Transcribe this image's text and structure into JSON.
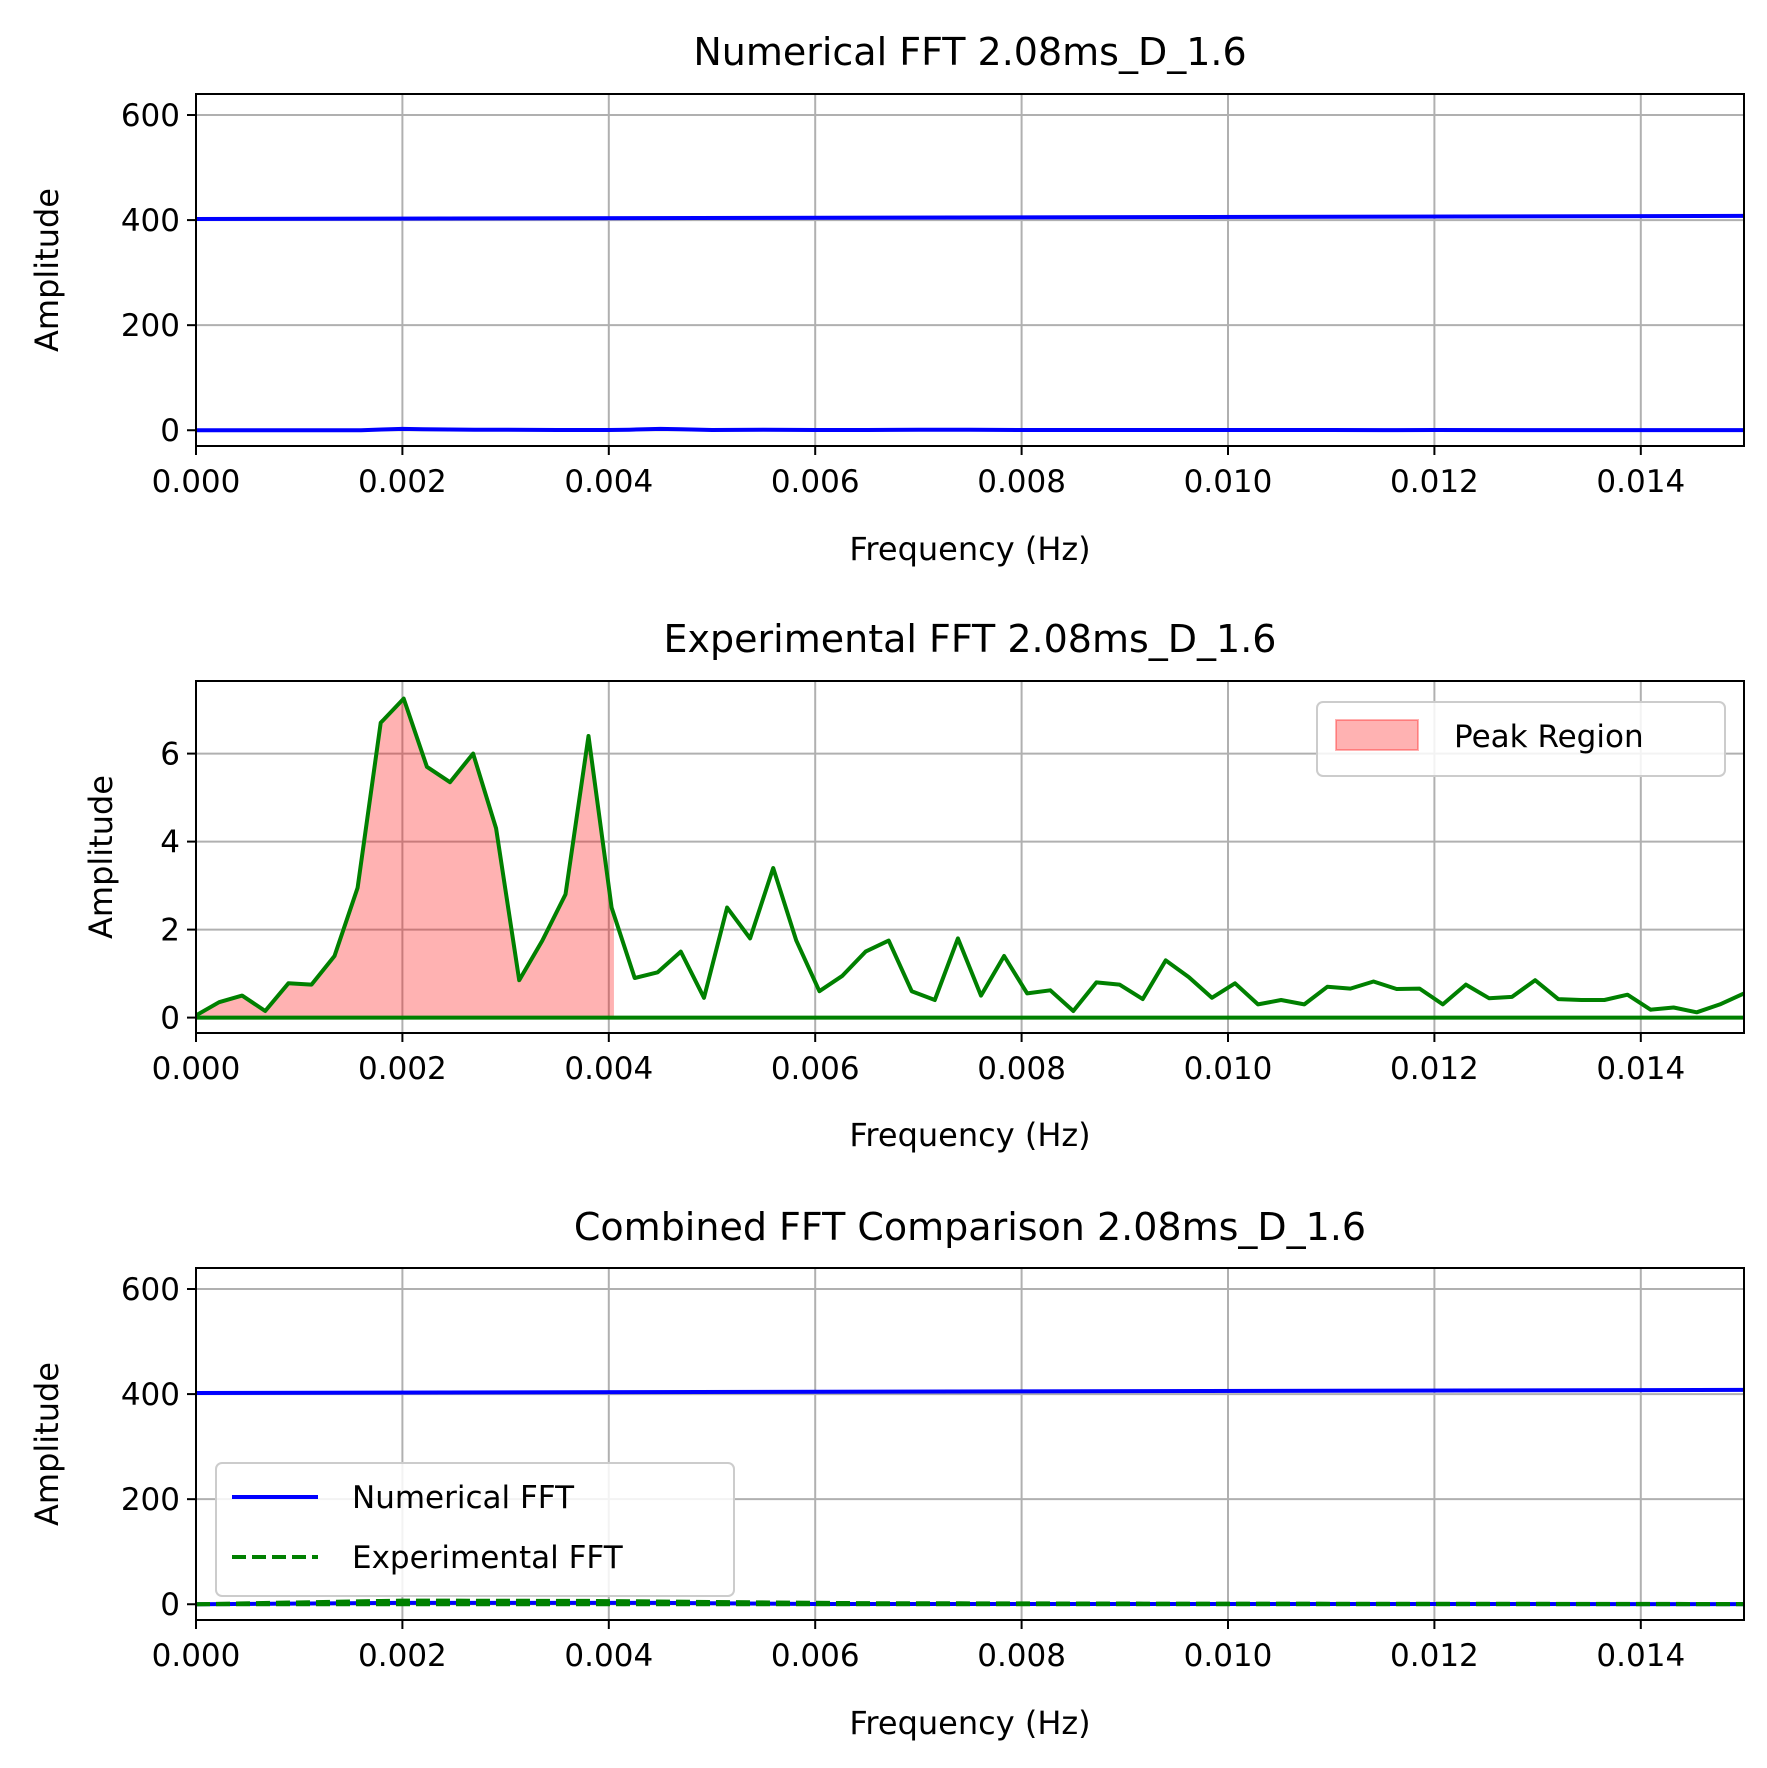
{
  "chart_data": [
    {
      "type": "line",
      "title": "Numerical FFT 2.08ms_D_1.6",
      "xlabel": "Frequency (Hz)",
      "ylabel": "Amplitude",
      "xlim": [
        0,
        0.015
      ],
      "ylim": [
        -30,
        640
      ],
      "xticks": [
        0.0,
        0.002,
        0.004,
        0.006,
        0.008,
        0.01,
        0.012,
        0.014
      ],
      "xtick_labels": [
        "0.000",
        "0.002",
        "0.004",
        "0.006",
        "0.008",
        "0.010",
        "0.012",
        "0.014"
      ],
      "yticks": [
        0,
        200,
        400,
        600
      ],
      "ytick_labels": [
        "0",
        "200",
        "400",
        "600"
      ],
      "grid": true,
      "series": [
        {
          "color": "#0000ff",
          "style": "solid",
          "x": [
            0,
            0.001,
            0.0016,
            0.0018,
            0.002,
            0.0022,
            0.0027,
            0.003,
            0.0035,
            0.004,
            0.0042,
            0.0045,
            0.0047,
            0.005,
            0.0055,
            0.006,
            0.0065,
            0.007,
            0.0075,
            0.008,
            0.0085,
            0.009,
            0.0095,
            0.01,
            0.011,
            0.0115,
            0.012,
            0.013,
            0.014,
            0.015
          ],
          "y": [
            0,
            0,
            0,
            1.5,
            2.5,
            2,
            1,
            1,
            0.5,
            0.5,
            1,
            2.5,
            2,
            0.5,
            1,
            0.5,
            0.5,
            1,
            1,
            0.5,
            0.5,
            0.5,
            0.5,
            0.5,
            0.5,
            0.3,
            0.5,
            0.3,
            0.2,
            0.2
          ]
        },
        {
          "color": "#0000ff",
          "style": "solid",
          "x": [
            0,
            0.015
          ],
          "y": [
            402,
            408
          ]
        }
      ]
    },
    {
      "type": "area",
      "title": "Experimental FFT 2.08ms_D_1.6",
      "xlabel": "Frequency (Hz)",
      "ylabel": "Amplitude",
      "xlim": [
        0,
        0.015
      ],
      "ylim": [
        -0.35,
        7.65
      ],
      "xticks": [
        0.0,
        0.002,
        0.004,
        0.006,
        0.008,
        0.01,
        0.012,
        0.014
      ],
      "xtick_labels": [
        "0.000",
        "0.002",
        "0.004",
        "0.006",
        "0.008",
        "0.010",
        "0.012",
        "0.014"
      ],
      "yticks": [
        0,
        2,
        4,
        6
      ],
      "ytick_labels": [
        "0",
        "2",
        "4",
        "6"
      ],
      "grid": true,
      "legend": {
        "location": "top-right",
        "entries": [
          "Peak Region"
        ]
      },
      "fill_region": {
        "label": "Peak Region",
        "color": "#ff0000",
        "alpha": 0.3,
        "x_range": [
          0,
          0.00405
        ]
      },
      "series": [
        {
          "color": "#008000",
          "style": "solid",
          "x": [
            0,
            0.000224,
            0.000447,
            0.000671,
            0.000895,
            0.001119,
            0.001342,
            0.001566,
            0.00179,
            0.002013,
            0.002237,
            0.002461,
            0.002685,
            0.002908,
            0.003132,
            0.003356,
            0.00358,
            0.003803,
            0.004027,
            0.004251,
            0.004474,
            0.004698,
            0.004922,
            0.005146,
            0.005369,
            0.005593,
            0.005817,
            0.006041,
            0.006264,
            0.006488,
            0.006712,
            0.006935,
            0.007159,
            0.007383,
            0.007607,
            0.00783,
            0.008054,
            0.008278,
            0.008501,
            0.008725,
            0.008949,
            0.009173,
            0.009396,
            0.00962,
            0.009844,
            0.010068,
            0.010291,
            0.010515,
            0.010739,
            0.010962,
            0.011186,
            0.01141,
            0.011634,
            0.011857,
            0.012081,
            0.012305,
            0.012529,
            0.012752,
            0.012976,
            0.0132,
            0.013423,
            0.013647,
            0.013871,
            0.014095,
            0.014318,
            0.014542,
            0.014766,
            0.015
          ],
          "y": [
            0.05,
            0.35,
            0.5,
            0.15,
            0.78,
            0.75,
            1.4,
            2.95,
            6.7,
            7.25,
            5.7,
            5.35,
            6.0,
            4.3,
            0.85,
            1.75,
            2.8,
            6.4,
            2.5,
            0.9,
            1.03,
            1.5,
            0.45,
            2.5,
            1.8,
            3.4,
            1.75,
            0.6,
            0.95,
            1.5,
            1.75,
            0.6,
            0.4,
            1.8,
            0.5,
            1.4,
            0.55,
            0.62,
            0.15,
            0.8,
            0.75,
            0.42,
            1.3,
            0.92,
            0.45,
            0.78,
            0.3,
            0.4,
            0.3,
            0.7,
            0.66,
            0.82,
            0.65,
            0.66,
            0.3,
            0.75,
            0.44,
            0.47,
            0.85,
            0.42,
            0.4,
            0.4,
            0.52,
            0.18,
            0.23,
            0.12,
            0.3,
            0.55
          ]
        },
        {
          "color": "#008000",
          "style": "solid",
          "x": [
            0,
            0.015
          ],
          "y": [
            0,
            0
          ]
        }
      ]
    },
    {
      "type": "line",
      "title": "Combined FFT Comparison 2.08ms_D_1.6",
      "xlabel": "Frequency (Hz)",
      "ylabel": "Amplitude",
      "xlim": [
        0,
        0.015
      ],
      "ylim": [
        -30,
        640
      ],
      "xticks": [
        0.0,
        0.002,
        0.004,
        0.006,
        0.008,
        0.01,
        0.012,
        0.014
      ],
      "xtick_labels": [
        "0.000",
        "0.002",
        "0.004",
        "0.006",
        "0.008",
        "0.010",
        "0.012",
        "0.014"
      ],
      "yticks": [
        0,
        200,
        400,
        600
      ],
      "ytick_labels": [
        "0",
        "200",
        "400",
        "600"
      ],
      "grid": true,
      "legend": {
        "location": "lower-left",
        "entries": [
          "Numerical FFT",
          "Experimental FFT"
        ]
      },
      "series": [
        {
          "name": "Numerical FFT",
          "color": "#0000ff",
          "style": "solid",
          "x": [
            0,
            0.015
          ],
          "y": [
            402,
            408
          ]
        },
        {
          "name": "Numerical FFT",
          "color": "#0000ff",
          "style": "solid",
          "x": [
            0,
            0.002,
            0.0045,
            0.006,
            0.01,
            0.015
          ],
          "y": [
            0,
            2.5,
            2.5,
            0.5,
            0.5,
            0.2
          ]
        },
        {
          "name": "Experimental FFT",
          "color": "#008000",
          "style": "dashed",
          "x": [
            0,
            0.002,
            0.0038,
            0.0056,
            0.0067,
            0.0074,
            0.0094,
            0.013,
            0.015
          ],
          "y": [
            0,
            7,
            6.4,
            3.4,
            1.7,
            1.8,
            1.3,
            0.8,
            0.5
          ]
        },
        {
          "name": "Experimental FFT",
          "color": "#008000",
          "style": "dashed",
          "x": [
            0,
            0.015
          ],
          "y": [
            0,
            0
          ]
        }
      ]
    }
  ]
}
